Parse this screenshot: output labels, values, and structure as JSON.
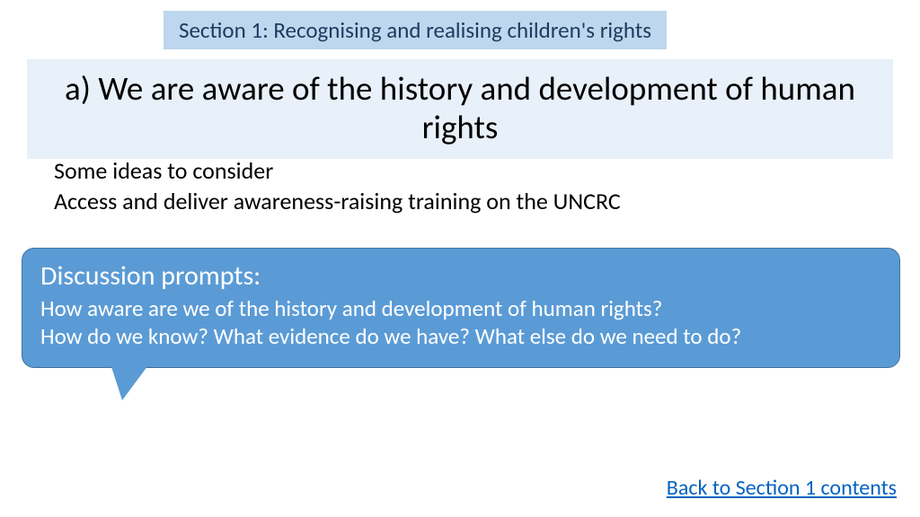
{
  "colors": {
    "header_bg": "#bdd7ee",
    "header_text": "#1f3a5f",
    "title_bg": "#e8f0fa",
    "title_text": "#000000",
    "body_text": "#000000",
    "callout_bg": "#5b9bd5",
    "callout_border": "#41719c",
    "callout_text": "#ffffff",
    "link_color": "#0563c1"
  },
  "section_header": "Section 1: Recognising and realising children's rights",
  "main_title": "a) We are aware of the history and development of human rights",
  "ideas_label": "Some ideas to consider",
  "access_text": "Access and deliver awareness-raising training on the UNCRC",
  "prompts": {
    "title": "Discussion prompts:",
    "line1": "How aware are we of the history and development of human rights?",
    "line2": "How do we know? What evidence do we have? What else do we need to do?"
  },
  "back_link": "Back to Section 1 contents"
}
